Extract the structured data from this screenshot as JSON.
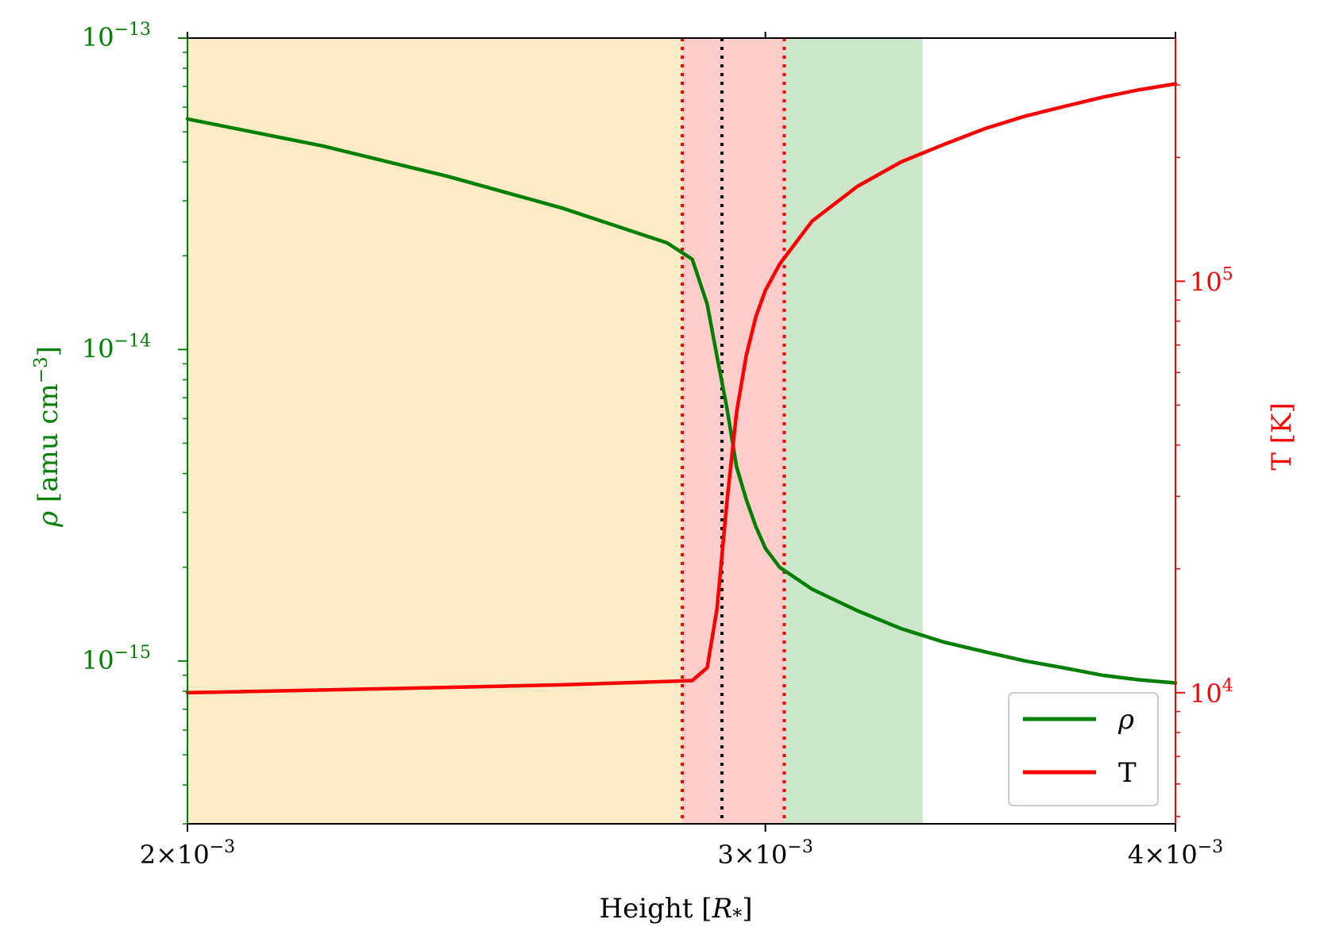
{
  "chart_data": {
    "type": "line",
    "x": [
      0.002,
      0.0022,
      0.0024,
      0.0026,
      0.0028,
      0.00285,
      0.00288,
      0.0029,
      0.00292,
      0.00294,
      0.00296,
      0.00298,
      0.003,
      0.00303,
      0.0031,
      0.0032,
      0.0033,
      0.0034,
      0.0035,
      0.0036,
      0.0037,
      0.0038,
      0.0039,
      0.004
    ],
    "series": [
      {
        "name": "ρ",
        "axis": "left",
        "color": "#008000",
        "values": [
          5.5e-14,
          4.5e-14,
          3.6e-14,
          2.85e-14,
          2.2e-14,
          1.95e-14,
          1.4e-14,
          9.5e-15,
          6.5e-15,
          4.2e-15,
          3.3e-15,
          2.7e-15,
          2.3e-15,
          2e-15,
          1.7e-15,
          1.45e-15,
          1.27e-15,
          1.15e-15,
          1.07e-15,
          1e-15,
          9.5e-16,
          9e-16,
          8.7e-16,
          8.5e-16
        ]
      },
      {
        "name": "T",
        "axis": "right",
        "color": "#ff0000",
        "values": [
          10000,
          10150,
          10300,
          10450,
          10650,
          10700,
          11500,
          16000,
          29000,
          48000,
          66000,
          82000,
          95000,
          110000,
          140000,
          170000,
          195000,
          215000,
          235000,
          252000,
          266000,
          280000,
          292000,
          302000
        ]
      }
    ],
    "xlabel_prefix": "Height [",
    "xlabel_var": "R",
    "xlabel_sub": "*",
    "xlabel_suffix": "]",
    "ylabel_var": "ρ",
    "ylabel_unit": " [amu cm",
    "ylabel_exp": "−3",
    "ylabel_close": "]",
    "y2label": "T [K]",
    "xlim": [
      0.002,
      0.004
    ],
    "xscale": "log",
    "ylim": [
      3e-16,
      1e-13
    ],
    "yscale": "log",
    "y2lim": [
      4800,
      390000
    ],
    "y2scale": "log",
    "x_ticks": [
      {
        "value": 0.002,
        "mant": "2×10",
        "exp": "−3"
      },
      {
        "value": 0.003,
        "mant": "3×10",
        "exp": "−3"
      },
      {
        "value": 0.004,
        "mant": "4×10",
        "exp": "−3"
      }
    ],
    "y_ticks": [
      {
        "value": 1e-13,
        "mant": "10",
        "exp": "−13"
      },
      {
        "value": 1e-14,
        "mant": "10",
        "exp": "−14"
      },
      {
        "value": 1e-15,
        "mant": "10",
        "exp": "−15"
      }
    ],
    "y2_ticks": [
      {
        "value": 10000,
        "mant": "10",
        "exp": "4"
      },
      {
        "value": 100000,
        "mant": "10",
        "exp": "5"
      }
    ],
    "shaded_regions": [
      {
        "x0": 0.002,
        "x1": 0.00283,
        "color": "#fdebc8"
      },
      {
        "x0": 0.00283,
        "x1": 0.00304,
        "color": "#ffcccc"
      },
      {
        "x0": 0.00304,
        "x1": 0.00335,
        "color": "#cce6cc"
      }
    ],
    "vertical_lines": [
      {
        "x": 0.00283,
        "color": "#ff0000",
        "style": "dotted"
      },
      {
        "x": 0.00304,
        "color": "#ff0000",
        "style": "dotted"
      },
      {
        "x": 0.00291,
        "color": "#000000",
        "style": "dotted"
      }
    ],
    "legend": {
      "position": "lower right",
      "entries": [
        "ρ",
        "T"
      ]
    },
    "grid": false,
    "colors": {
      "left_axis": "#008000",
      "right_axis": "#ff0000"
    }
  }
}
